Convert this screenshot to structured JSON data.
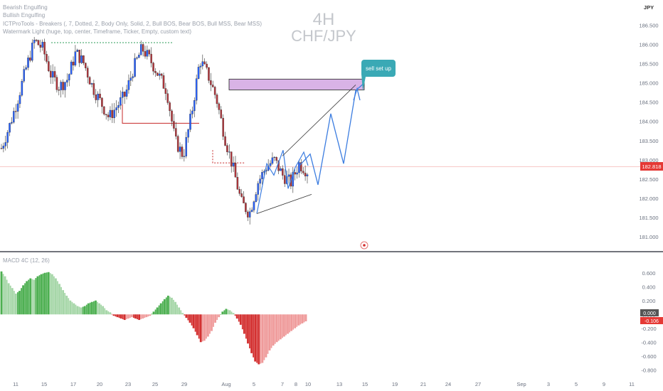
{
  "indicators": [
    "Bearish Engulfing",
    "Bullish Engulfing",
    "ICTProTools - Breakers (, 7, Dotted, 2, Body Only, Solid, 2, Bull BOS, Bear BOS, Bull MSS, Bear MSS)",
    "Watermark Light (huge, top, center, Timeframe, Ticker, Empty, custom text)"
  ],
  "watermark": {
    "timeframe": "4H",
    "symbol": "CHF/JPY"
  },
  "currency_label": "JPY",
  "annotation": {
    "text": "sell set up"
  },
  "macd": {
    "title": "MACD 4C (12, 26)",
    "current_values": [
      "0.000",
      "-0.106"
    ]
  },
  "colors": {
    "bull_candle": "#2962ff",
    "bear_candle": "#b2363c",
    "zone_fill": "#d9b3e6",
    "path_blue": "#3c7de0",
    "callout": "#3aa9b5",
    "price_line": "#e53935",
    "macd_green": "#4caf50",
    "macd_light_green": "#a5d6a7",
    "macd_red": "#d32f2f",
    "macd_light_red": "#ef9a9a"
  },
  "chart_data": [
    {
      "type": "candlestick",
      "title": "",
      "symbol": "CHF/JPY",
      "timeframe": "4H",
      "current_price": 182.818,
      "current_price_label": "182.818",
      "y_ticks": [
        "186.500",
        "186.000",
        "185.500",
        "185.000",
        "184.500",
        "184.000",
        "183.500",
        "183.000",
        "182.500",
        "182.000",
        "181.500",
        "181.000"
      ],
      "ylim": [
        180.72,
        186.9
      ],
      "x_ticks": [
        "11",
        "15",
        "17",
        "20",
        "23",
        "25",
        "29",
        "Aug",
        "5",
        "7",
        "8",
        "10",
        "13",
        "15",
        "19",
        "21",
        "24",
        "27",
        "Sep",
        "3",
        "5",
        "9",
        "11"
      ],
      "close_path": [
        183.3,
        183.9,
        184.6,
        185.4,
        186.1,
        185.9,
        185.2,
        184.9,
        185.1,
        185.8,
        185.5,
        184.9,
        184.5,
        184.1,
        184.4,
        184.7,
        185.4,
        185.9,
        185.6,
        185.2,
        184.8,
        183.5,
        183.1,
        184.2,
        185.6,
        185.2,
        184.6,
        183.6,
        182.8,
        181.9,
        181.6,
        182.4,
        182.8,
        183.0,
        182.6,
        182.4,
        182.9,
        182.7
      ],
      "levels": [
        {
          "name": "breaker-high",
          "value": 186.05
        },
        {
          "name": "breaker-mid",
          "value": 183.95
        },
        {
          "name": "breaker-low",
          "value": 182.92
        }
      ],
      "zone": {
        "top": 185.1,
        "bottom": 184.82
      },
      "projection": [
        184.2,
        183.6,
        184.7,
        183.3,
        182.4,
        182.6,
        184.8
      ],
      "wedge_upper": [
        183.1,
        185.9
      ],
      "wedge_lower": [
        181.6,
        182.1
      ]
    },
    {
      "type": "histogram",
      "name": "MACD 4C (12, 26)",
      "y_ticks": [
        "0.600",
        "0.400",
        "0.200",
        "0.000",
        "-0.200",
        "-0.400",
        "-0.600",
        "-0.800"
      ],
      "ylim": [
        -0.9,
        0.7
      ],
      "values": [
        0.62,
        0.55,
        0.45,
        0.38,
        0.3,
        0.34,
        0.42,
        0.48,
        0.52,
        0.5,
        0.55,
        0.58,
        0.6,
        0.61,
        0.58,
        0.52,
        0.44,
        0.35,
        0.27,
        0.2,
        0.16,
        0.12,
        0.1,
        0.12,
        0.16,
        0.18,
        0.2,
        0.16,
        0.12,
        0.06,
        0.03,
        -0.02,
        -0.04,
        -0.06,
        -0.08,
        -0.06,
        -0.04,
        -0.06,
        -0.08,
        -0.06,
        -0.04,
        -0.02,
        0.04,
        0.1,
        0.16,
        0.22,
        0.27,
        0.24,
        0.18,
        0.1,
        0.02,
        -0.05,
        -0.12,
        -0.2,
        -0.3,
        -0.4,
        -0.38,
        -0.32,
        -0.24,
        -0.12,
        -0.04,
        0.04,
        0.08,
        0.06,
        0.02,
        -0.06,
        -0.15,
        -0.28,
        -0.42,
        -0.56,
        -0.68,
        -0.72,
        -0.7,
        -0.62,
        -0.52,
        -0.45,
        -0.4,
        -0.36,
        -0.32,
        -0.28,
        -0.24,
        -0.2,
        -0.16,
        -0.13,
        -0.1
      ],
      "current_values": [
        0.0,
        -0.106
      ]
    }
  ]
}
